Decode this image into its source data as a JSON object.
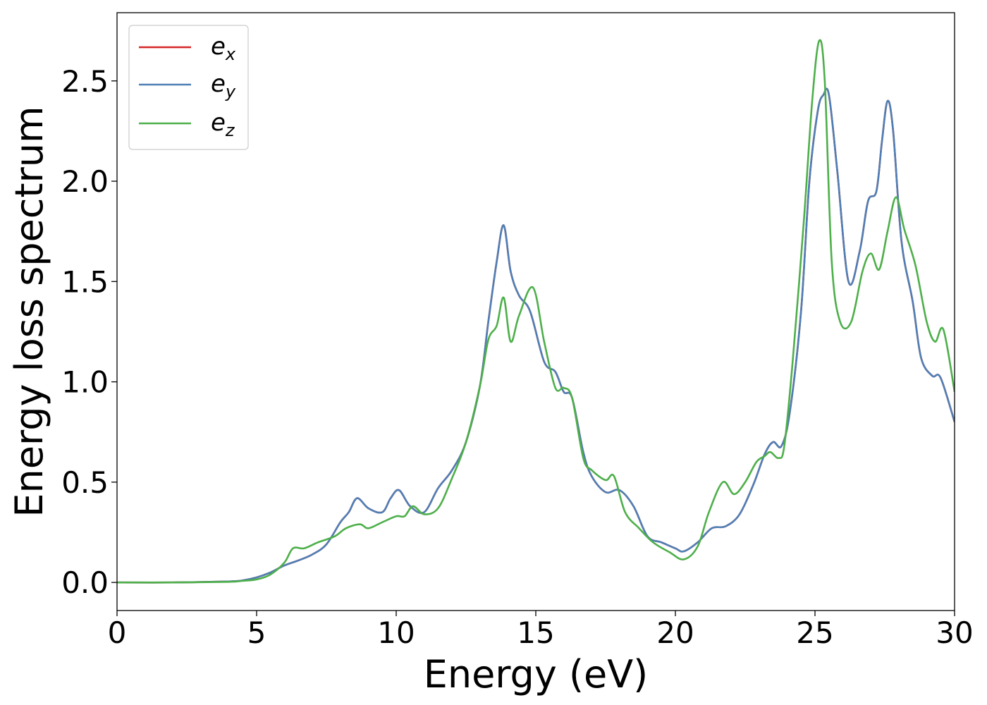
{
  "chart_data": {
    "type": "line",
    "xlabel": "Energy (eV)",
    "ylabel": "Energy loss spectrum",
    "xlim": [
      0,
      30
    ],
    "ylim": [
      -0.14,
      2.84
    ],
    "xticks": [
      "0",
      "5",
      "10",
      "15",
      "20",
      "25",
      "30"
    ],
    "yticks": [
      "0.0",
      "0.5",
      "1.0",
      "1.5",
      "2.0",
      "2.5"
    ],
    "grid": false,
    "legend_position": "top-left",
    "series": [
      {
        "name": "e_x",
        "label_main": "e",
        "label_sub": "x",
        "color": "#d62728",
        "x": [
          0,
          2,
          4,
          4.5,
          5,
          5.5,
          6,
          6.5,
          7,
          7.5,
          8,
          8.3,
          8.6,
          9,
          9.5,
          9.8,
          10.1,
          10.5,
          11,
          11.5,
          12,
          12.5,
          13,
          13.3,
          13.6,
          13.85,
          14.1,
          14.4,
          14.8,
          15.3,
          15.7,
          16,
          16.3,
          16.7,
          17,
          17.5,
          18,
          18.5,
          19,
          19.5,
          20,
          20.3,
          20.8,
          21.3,
          21.8,
          22.3,
          22.8,
          23.2,
          23.5,
          23.8,
          24.1,
          24.5,
          24.8,
          25.1,
          25.3,
          25.5,
          25.8,
          26.2,
          26.6,
          26.9,
          27.2,
          27.4,
          27.6,
          27.8,
          28.1,
          28.5,
          28.8,
          29.2,
          29.5,
          30
        ],
        "y": [
          0,
          0,
          0.005,
          0.01,
          0.025,
          0.05,
          0.085,
          0.11,
          0.14,
          0.19,
          0.3,
          0.35,
          0.42,
          0.37,
          0.35,
          0.42,
          0.46,
          0.38,
          0.35,
          0.47,
          0.56,
          0.7,
          0.98,
          1.3,
          1.6,
          1.78,
          1.55,
          1.43,
          1.35,
          1.1,
          1.05,
          0.95,
          0.92,
          0.65,
          0.53,
          0.45,
          0.46,
          0.38,
          0.23,
          0.2,
          0.17,
          0.155,
          0.2,
          0.27,
          0.28,
          0.34,
          0.49,
          0.64,
          0.7,
          0.68,
          0.85,
          1.35,
          2.0,
          2.35,
          2.43,
          2.43,
          2.05,
          1.5,
          1.65,
          1.9,
          1.95,
          2.2,
          2.4,
          2.25,
          1.7,
          1.4,
          1.12,
          1.03,
          1.02,
          0.8
        ]
      },
      {
        "name": "e_y",
        "label_main": "e",
        "label_sub": "y",
        "color": "#4f7fb5",
        "x": [
          0,
          2,
          4,
          4.5,
          5,
          5.5,
          6,
          6.5,
          7,
          7.5,
          8,
          8.3,
          8.6,
          9,
          9.5,
          9.8,
          10.1,
          10.5,
          11,
          11.5,
          12,
          12.5,
          13,
          13.3,
          13.6,
          13.85,
          14.1,
          14.4,
          14.8,
          15.3,
          15.7,
          16,
          16.3,
          16.7,
          17,
          17.5,
          18,
          18.5,
          19,
          19.5,
          20,
          20.3,
          20.8,
          21.3,
          21.8,
          22.3,
          22.8,
          23.2,
          23.5,
          23.8,
          24.1,
          24.5,
          24.8,
          25.1,
          25.3,
          25.5,
          25.8,
          26.2,
          26.6,
          26.9,
          27.2,
          27.4,
          27.6,
          27.8,
          28.1,
          28.5,
          28.8,
          29.2,
          29.5,
          30
        ],
        "y": [
          0,
          0,
          0.005,
          0.01,
          0.025,
          0.05,
          0.085,
          0.11,
          0.14,
          0.19,
          0.3,
          0.35,
          0.42,
          0.37,
          0.35,
          0.42,
          0.46,
          0.38,
          0.35,
          0.47,
          0.56,
          0.7,
          0.98,
          1.3,
          1.6,
          1.78,
          1.55,
          1.43,
          1.35,
          1.1,
          1.05,
          0.95,
          0.92,
          0.65,
          0.53,
          0.45,
          0.46,
          0.38,
          0.23,
          0.2,
          0.17,
          0.155,
          0.2,
          0.27,
          0.28,
          0.34,
          0.49,
          0.64,
          0.7,
          0.68,
          0.85,
          1.35,
          2.0,
          2.35,
          2.43,
          2.43,
          2.05,
          1.5,
          1.65,
          1.9,
          1.95,
          2.2,
          2.4,
          2.25,
          1.7,
          1.4,
          1.12,
          1.03,
          1.02,
          0.8
        ]
      },
      {
        "name": "e_z",
        "label_main": "e",
        "label_sub": "z",
        "color": "#4daf4a",
        "x": [
          0,
          2,
          4,
          4.5,
          5,
          5.5,
          6,
          6.3,
          6.7,
          7.2,
          7.8,
          8.2,
          8.7,
          9,
          9.5,
          10,
          10.3,
          10.6,
          11,
          11.5,
          12,
          12.5,
          13,
          13.3,
          13.6,
          13.85,
          14.1,
          14.4,
          14.9,
          15.3,
          15.7,
          16,
          16.3,
          16.7,
          17,
          17.5,
          17.8,
          18.2,
          18.7,
          19.2,
          19.8,
          20.3,
          20.8,
          21.2,
          21.7,
          22.1,
          22.5,
          22.9,
          23.2,
          23.4,
          23.7,
          23.9,
          24.2,
          24.6,
          24.9,
          25.15,
          25.35,
          25.6,
          25.9,
          26.3,
          26.7,
          27,
          27.3,
          27.6,
          27.9,
          28.2,
          28.6,
          29,
          29.3,
          29.6,
          30
        ],
        "y": [
          0,
          0,
          0.003,
          0.008,
          0.015,
          0.04,
          0.1,
          0.17,
          0.17,
          0.2,
          0.23,
          0.27,
          0.29,
          0.27,
          0.3,
          0.33,
          0.33,
          0.38,
          0.34,
          0.37,
          0.52,
          0.7,
          0.98,
          1.21,
          1.28,
          1.42,
          1.2,
          1.33,
          1.47,
          1.2,
          0.97,
          0.97,
          0.92,
          0.62,
          0.56,
          0.51,
          0.53,
          0.35,
          0.27,
          0.2,
          0.15,
          0.115,
          0.18,
          0.35,
          0.5,
          0.44,
          0.5,
          0.6,
          0.63,
          0.65,
          0.62,
          0.68,
          1.1,
          1.8,
          2.4,
          2.7,
          2.5,
          1.6,
          1.3,
          1.3,
          1.55,
          1.64,
          1.56,
          1.75,
          1.92,
          1.76,
          1.58,
          1.3,
          1.2,
          1.26,
          0.95
        ]
      }
    ]
  }
}
